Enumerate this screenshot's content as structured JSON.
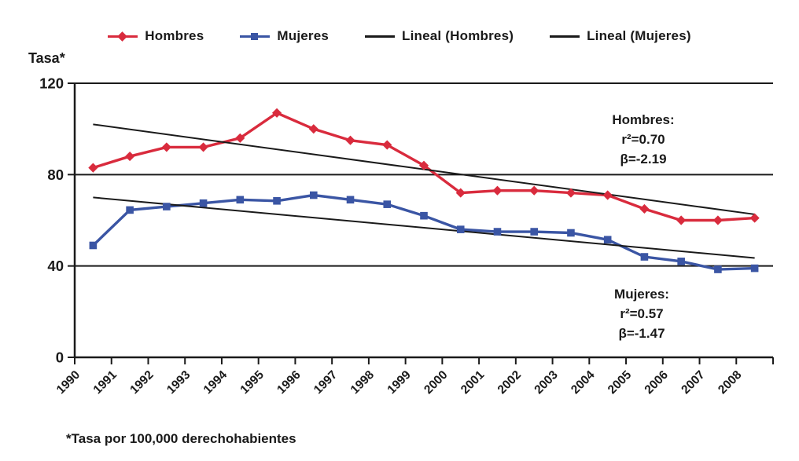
{
  "figure": {
    "footnote": "*Tasa por 100,000 derechohabientes"
  },
  "chart_data": {
    "type": "line",
    "title": "",
    "ylabel": "Tasa*",
    "xlabel": "",
    "ylim": [
      0,
      120
    ],
    "yticks": [
      0,
      40,
      80,
      120
    ],
    "grid": "horizontal",
    "legend_position": "top",
    "categories": [
      "1990",
      "1991",
      "1992",
      "1993",
      "1994",
      "1995",
      "1996",
      "1997",
      "1998",
      "1999",
      "2000",
      "2001",
      "2002",
      "2003",
      "2004",
      "2005",
      "2006",
      "2007",
      "2008"
    ],
    "series": [
      {
        "name": "Hombres",
        "color": "#d92b3d",
        "marker": "diamond",
        "values": [
          83,
          88,
          92,
          92,
          96,
          107,
          100,
          95,
          93,
          84,
          72,
          73,
          73,
          72,
          71,
          65,
          60,
          60,
          61
        ]
      },
      {
        "name": "Mujeres",
        "color": "#3a55a4",
        "marker": "square",
        "values": [
          49,
          64.5,
          66,
          67.5,
          69,
          68.5,
          71,
          69,
          67,
          62,
          56,
          55,
          55,
          54.5,
          51.5,
          44,
          42,
          38.5,
          39
        ]
      }
    ],
    "trendlines": [
      {
        "name": "Lineal (Hombres)",
        "color": "#1a1a1a",
        "start_value": 102,
        "end_value": 62.6
      },
      {
        "name": "Lineal (Mujeres)",
        "color": "#1a1a1a",
        "start_value": 70,
        "end_value": 43.5
      }
    ],
    "legend": [
      {
        "label": "Hombres",
        "type": "diamond-line",
        "color": "#d92b3d"
      },
      {
        "label": "Mujeres",
        "type": "square-line",
        "color": "#3a55a4"
      },
      {
        "label": "Lineal (Hombres)",
        "type": "line",
        "color": "#1a1a1a"
      },
      {
        "label": "Lineal (Mujeres)",
        "type": "line",
        "color": "#1a1a1a"
      }
    ],
    "annotations": [
      {
        "name": "hombres-stats",
        "lines": [
          "Hombres:",
          "r²=0.70",
          "β=-2.19"
        ]
      },
      {
        "name": "mujeres-stats",
        "lines": [
          "Mujeres:",
          "r²=0.57",
          "β=-1.47"
        ]
      }
    ]
  }
}
